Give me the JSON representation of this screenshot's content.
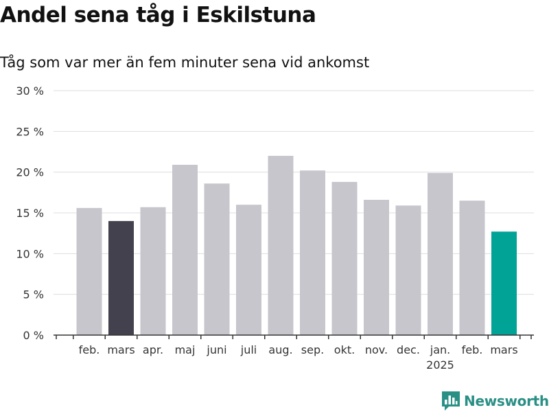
{
  "title": "Andel sena tåg i Eskilstuna",
  "subtitle": "Tåg som var mer än fem minuter sena vid ankomst",
  "brand": {
    "name": "Newsworthy",
    "color": "#2a8f85"
  },
  "colors": {
    "default_bar": "#c7c6cc",
    "highlight_prev": "#43414d",
    "highlight_current": "#00a396",
    "grid": "#dddddd",
    "axis": "#333333"
  },
  "chart_data": {
    "type": "bar",
    "categories": [
      "feb.",
      "mars",
      "apr.",
      "maj",
      "juni",
      "juli",
      "aug.",
      "sep.",
      "okt.",
      "nov.",
      "dec.",
      "jan.",
      "feb.",
      "mars"
    ],
    "year_labels": [
      "",
      "",
      "",
      "",
      "",
      "",
      "",
      "",
      "",
      "",
      "",
      "2025",
      "",
      ""
    ],
    "values": [
      15.6,
      14.0,
      15.7,
      20.9,
      18.6,
      16.0,
      22.0,
      20.2,
      18.8,
      16.6,
      15.9,
      19.9,
      16.5,
      12.7
    ],
    "highlight": [
      "",
      "prev",
      "",
      "",
      "",
      "",
      "",
      "",
      "",
      "",
      "",
      "",
      "",
      "current"
    ],
    "y_ticks": [
      "0 %",
      "5 %",
      "10 %",
      "15 %",
      "20 %",
      "25 %",
      "30 %"
    ],
    "y_tick_values": [
      0,
      5,
      10,
      15,
      20,
      25,
      30
    ],
    "ylim": [
      0,
      30
    ],
    "xlabel": "",
    "ylabel": "",
    "grid": true
  }
}
